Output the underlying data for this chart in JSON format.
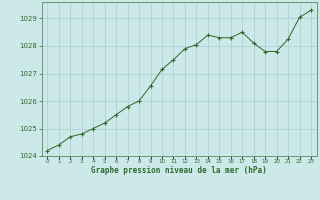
{
  "x": [
    0,
    1,
    2,
    3,
    4,
    5,
    6,
    7,
    8,
    9,
    10,
    11,
    12,
    13,
    14,
    15,
    16,
    17,
    18,
    19,
    20,
    21,
    22,
    23
  ],
  "y": [
    1024.2,
    1024.4,
    1024.7,
    1024.8,
    1025.0,
    1025.2,
    1025.5,
    1025.8,
    1026.0,
    1026.55,
    1027.15,
    1027.5,
    1027.9,
    1028.05,
    1028.4,
    1028.3,
    1028.3,
    1028.5,
    1028.1,
    1027.8,
    1027.8,
    1028.25,
    1029.05,
    1029.3
  ],
  "line_color": "#2d6a2d",
  "marker_color": "#2d6a2d",
  "bg_color": "#cce8e8",
  "grid_color": "#aacece",
  "xlabel": "Graphe pression niveau de la mer (hPa)",
  "xlabel_color": "#2d6a2d",
  "tick_color": "#2d6a2d",
  "spine_color": "#5a8a5a",
  "ylim": [
    1024.0,
    1029.6
  ],
  "yticks": [
    1024,
    1025,
    1026,
    1027,
    1028,
    1029
  ],
  "xticks": [
    0,
    1,
    2,
    3,
    4,
    5,
    6,
    7,
    8,
    9,
    10,
    11,
    12,
    13,
    14,
    15,
    16,
    17,
    18,
    19,
    20,
    21,
    22,
    23
  ]
}
